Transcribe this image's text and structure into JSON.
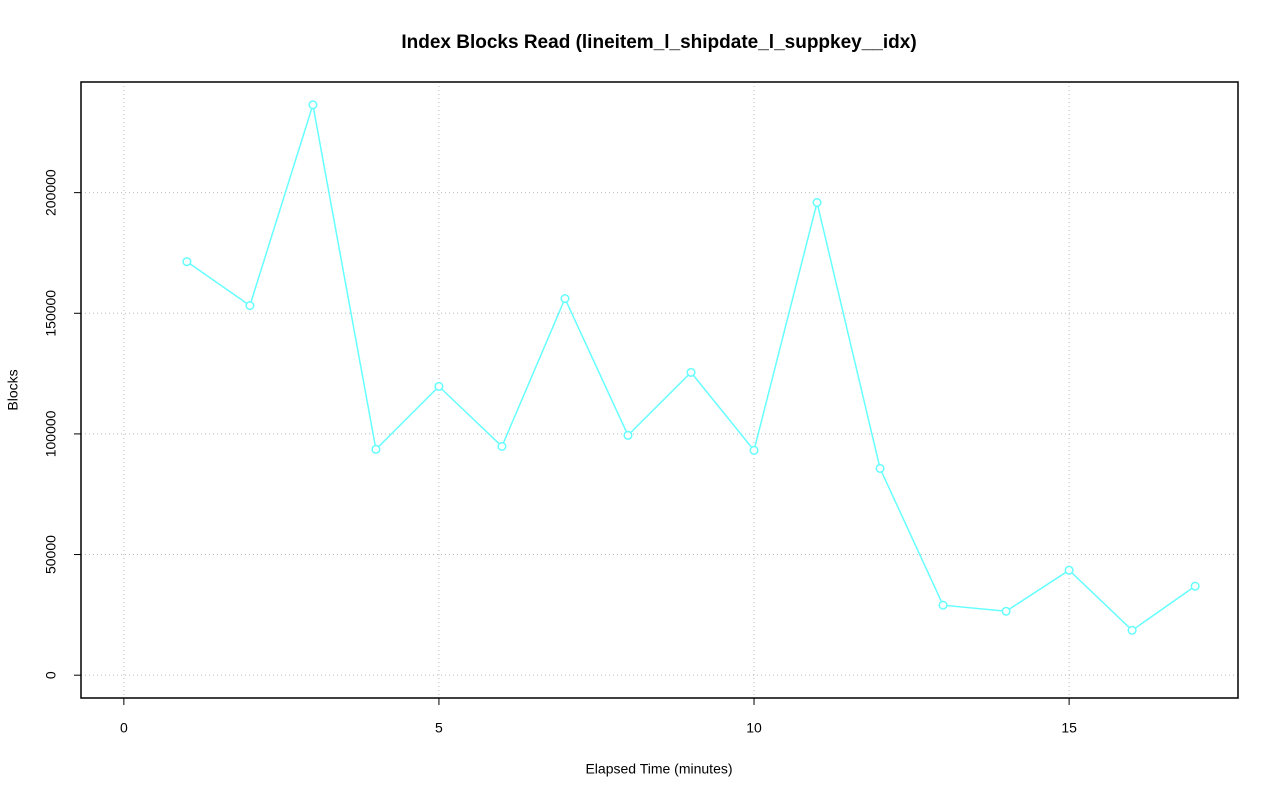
{
  "chart_data": {
    "type": "line",
    "title": "Index Blocks Read (lineitem_l_shipdate_l_suppkey__idx)",
    "x_label": "Elapsed Time (minutes)",
    "y_label": "Blocks",
    "x": [
      1,
      2,
      3,
      4,
      5,
      6,
      7,
      8,
      9,
      10,
      11,
      12,
      13,
      14,
      15,
      16,
      17
    ],
    "series": [
      {
        "color": "#66ffff",
        "values": [
          171400,
          153200,
          236400,
          93600,
          119700,
          94800,
          156100,
          99400,
          125500,
          93200,
          195900,
          85700,
          29000,
          26500,
          43500,
          18600,
          36900
        ]
      }
    ],
    "xlim": [
      -0.68,
      17.68
    ],
    "xticks": [
      0,
      5,
      10,
      15
    ],
    "ylim": [
      -9456,
      245856
    ],
    "yticks": [
      0,
      50000,
      100000,
      150000,
      200000
    ],
    "grid": true
  }
}
